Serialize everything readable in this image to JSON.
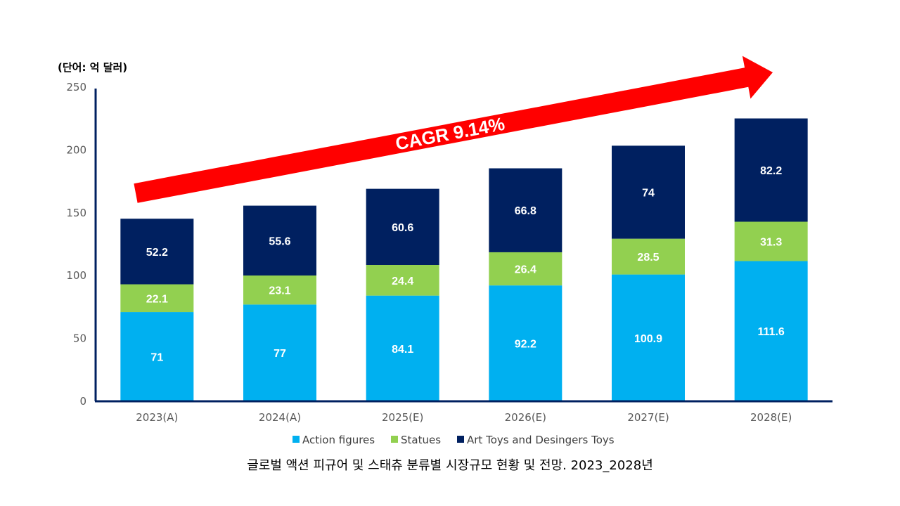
{
  "chart_data": {
    "type": "bar",
    "stacked": true,
    "unit_label": "(단어: 억 달러)",
    "categories": [
      "2023(A)",
      "2024(A)",
      "2025(E)",
      "2026(E)",
      "2027(E)",
      "2028(E)"
    ],
    "series": [
      {
        "name": "Action figures",
        "color": "#00B0F0",
        "values": [
          71,
          77,
          84.1,
          92.2,
          100.9,
          111.6
        ],
        "labels": [
          "71",
          "77",
          "84.1",
          "92.2",
          "100.9",
          "111.6"
        ]
      },
      {
        "name": "Statues",
        "color": "#92D050",
        "values": [
          22.1,
          23.1,
          24.4,
          26.4,
          28.5,
          31.3
        ],
        "labels": [
          "22.1",
          "23.1",
          "24.4",
          "26.4",
          "28.5",
          "31.3"
        ]
      },
      {
        "name": "Art Toys and Desingers Toys",
        "color": "#002060",
        "values": [
          52.2,
          55.6,
          60.6,
          66.8,
          74,
          82.2
        ],
        "labels": [
          "52.2",
          "55.6",
          "60.6",
          "66.8",
          "74",
          "82.2"
        ]
      }
    ],
    "ylim": [
      0,
      250
    ],
    "yticks": [
      0,
      50,
      100,
      150,
      200,
      250
    ],
    "ytick_labels": [
      "0",
      "50",
      "100",
      "150",
      "200",
      "250"
    ],
    "legend_position": "bottom",
    "annotation": {
      "text": "CAGR 9.14%",
      "color": "#FF0000"
    },
    "caption": "글로벌 액션 피규어 및 스태츄 분류별 시장규모 현황 및 전망. 2023_2028년"
  }
}
